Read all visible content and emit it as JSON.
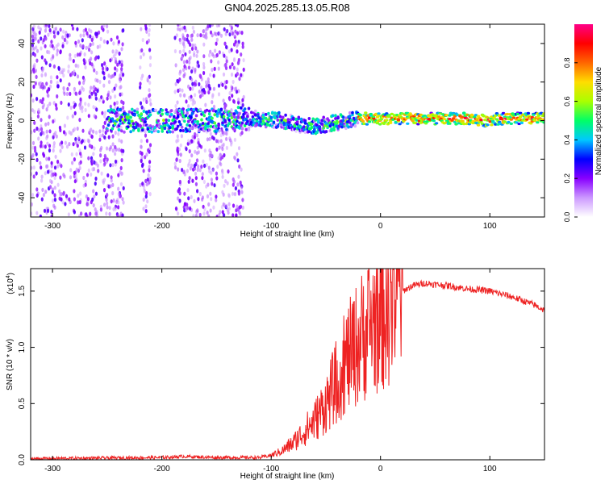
{
  "chart_data": [
    {
      "type": "heatmap",
      "title": "GN04.2025.285.13.05.R08",
      "xlabel": "Height of straight line (km)",
      "ylabel": "Frequency (Hz)",
      "xlim": [
        -320,
        150
      ],
      "ylim": [
        -50,
        50
      ],
      "xticks": [
        -300,
        -200,
        -100,
        0,
        100
      ],
      "xtick_labels": [
        "-300",
        "-200",
        "-100",
        "0",
        "100"
      ],
      "yticks": [
        -40,
        -20,
        0,
        20,
        40
      ],
      "ytick_labels": [
        "-40",
        "-20",
        "0",
        "20",
        "40"
      ],
      "colorbar": {
        "label": "Normalized spectral amplitude",
        "range": [
          0,
          1
        ],
        "ticks": [
          0.0,
          0.2,
          0.4,
          0.6,
          0.8
        ],
        "tick_labels": [
          "0.0",
          "0.2",
          "0.4",
          "0.6",
          "0.8"
        ],
        "colors": [
          "#ffffff",
          "#cc99ff",
          "#8800ff",
          "#0000ff",
          "#00c8ff",
          "#00ff66",
          "#aaff00",
          "#ffdd00",
          "#ff6600",
          "#ff0000",
          "#ff0088"
        ]
      },
      "ridge": {
        "x": [
          -250,
          -230,
          -210,
          -190,
          -170,
          -150,
          -130,
          -110,
          -90,
          -75,
          -60,
          -50,
          -40,
          -30,
          -20,
          0,
          20,
          40,
          60,
          80,
          95,
          105,
          120,
          150
        ],
        "y": [
          0,
          0,
          0,
          0,
          0,
          0,
          1,
          1,
          0,
          -2,
          -3,
          -2,
          -1,
          0,
          1,
          1,
          1,
          1,
          1,
          1,
          0,
          1,
          1,
          1
        ]
      },
      "noise_regions": [
        [
          -320,
          -235
        ],
        [
          -220,
          -210
        ],
        [
          -188,
          -125
        ]
      ]
    },
    {
      "type": "line",
      "xlabel": "Height of straight line (km)",
      "ylabel": "SNR (10 * v/v)",
      "y_multiplier": "(x10",
      "y_multiplier_exp": "4",
      "y_multiplier_close": ")",
      "xlim": [
        -320,
        150
      ],
      "ylim": [
        0,
        1.7
      ],
      "xticks": [
        -300,
        -200,
        -100,
        0,
        100
      ],
      "xtick_labels": [
        "-300",
        "-200",
        "-100",
        "0",
        "100"
      ],
      "yticks": [
        0,
        0.5,
        1,
        1.5
      ],
      "ytick_labels": [
        "0.0",
        "0.5",
        "1.0",
        "1.5"
      ],
      "color": "#ee2222",
      "envelope": {
        "x": [
          -320,
          -200,
          -180,
          -150,
          -110,
          -100,
          -90,
          -80,
          -70,
          -60,
          -50,
          -40,
          -30,
          -20,
          -10,
          0,
          10,
          20,
          30,
          40,
          60,
          80,
          100,
          120,
          140,
          150
        ],
        "y": [
          0.01,
          0.02,
          0.03,
          0.02,
          0.02,
          0.04,
          0.08,
          0.15,
          0.25,
          0.35,
          0.5,
          0.7,
          0.9,
          1.05,
          1.2,
          1.3,
          1.42,
          1.5,
          1.55,
          1.57,
          1.55,
          1.52,
          1.5,
          1.45,
          1.38,
          1.33
        ]
      }
    }
  ]
}
